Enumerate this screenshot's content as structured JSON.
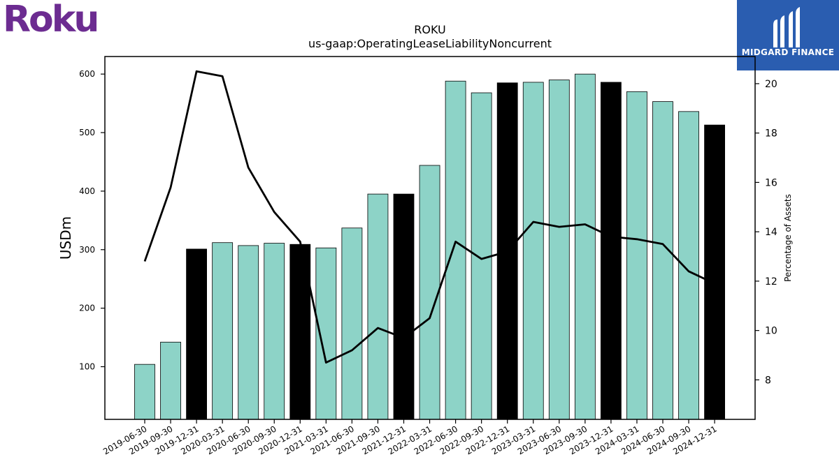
{
  "logos": {
    "left_brand": "Roku",
    "left_color": "#6c2c91",
    "right_brand": "MIDGARD FINANCE",
    "right_bg": "#2a5db0"
  },
  "chart_data": {
    "type": "bar",
    "title": "ROKU",
    "subtitle": "us-gaap:OperatingLeaseLiabilityNoncurrent",
    "ylabel": "USDm",
    "y2label": "Percentage of Assets",
    "ylim": [
      10,
      630
    ],
    "y2lim": [
      6.4,
      21.1
    ],
    "yticks": [
      100,
      200,
      300,
      400,
      500,
      600
    ],
    "y2ticks": [
      8,
      10,
      12,
      14,
      16,
      18,
      20
    ],
    "grid": false,
    "categories": [
      "2019-06-30",
      "2019-09-30",
      "2019-12-31",
      "2020-03-31",
      "2020-06-30",
      "2020-09-30",
      "2020-12-31",
      "2021-03-31",
      "2021-06-30",
      "2021-09-30",
      "2021-12-31",
      "2022-03-31",
      "2022-06-30",
      "2022-09-30",
      "2022-12-31",
      "2023-03-31",
      "2023-06-30",
      "2023-09-30",
      "2023-12-31",
      "2024-03-31",
      "2024-06-30",
      "2024-09-30",
      "2024-12-31"
    ],
    "values": [
      104,
      142,
      301,
      312,
      307,
      311,
      309,
      303,
      337,
      395,
      395,
      444,
      588,
      568,
      585,
      586,
      590,
      600,
      586,
      570,
      553,
      536,
      513
    ],
    "highlight": [
      false,
      false,
      true,
      false,
      false,
      false,
      true,
      false,
      false,
      false,
      true,
      false,
      false,
      false,
      true,
      false,
      false,
      false,
      true,
      false,
      false,
      false,
      true
    ],
    "bar_color": "#8dd3c7",
    "highlight_color": "#000000",
    "line": {
      "axis": "right",
      "color": "#000000",
      "values": [
        12.8,
        15.8,
        20.5,
        20.3,
        16.6,
        14.8,
        13.6,
        8.7,
        9.2,
        10.1,
        9.7,
        10.5,
        13.6,
        12.9,
        13.2,
        14.4,
        14.2,
        14.3,
        13.8,
        13.7,
        13.5,
        12.4,
        11.9
      ]
    }
  }
}
